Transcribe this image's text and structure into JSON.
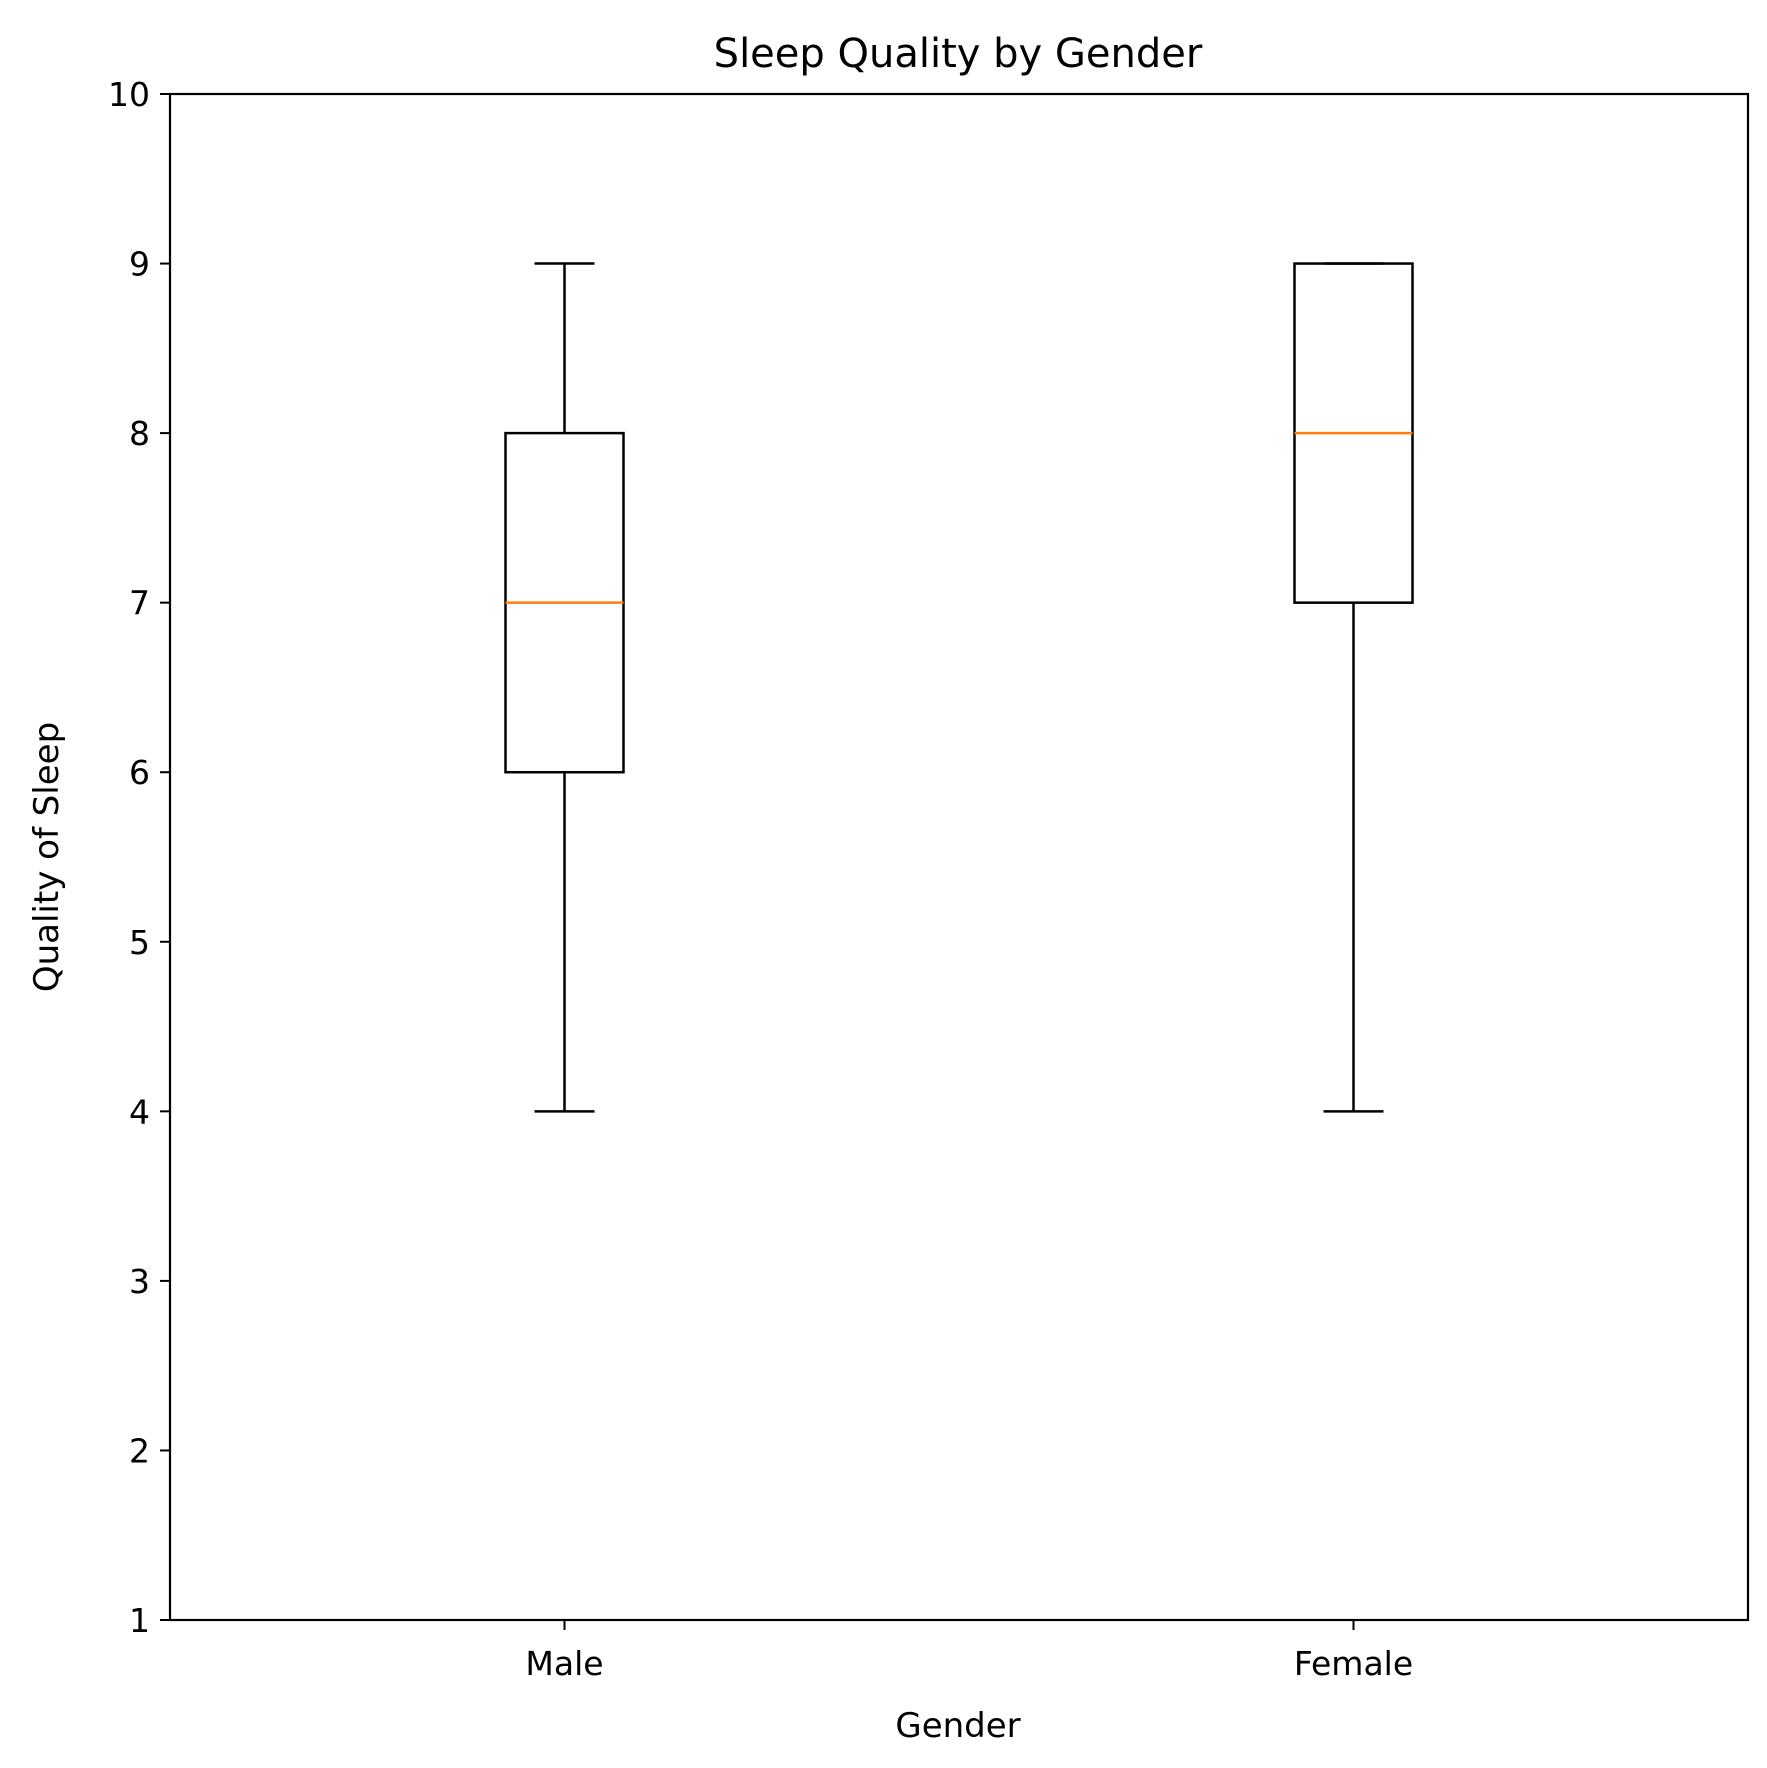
{
  "chart_data": {
    "type": "box",
    "title": "Sleep Quality by Gender",
    "xlabel": "Gender",
    "ylabel": "Quality of Sleep",
    "ylim": [
      1,
      10
    ],
    "yticks": [
      "1",
      "2",
      "3",
      "4",
      "5",
      "6",
      "7",
      "8",
      "9",
      "10"
    ],
    "categories": [
      "Male",
      "Female"
    ],
    "boxes": [
      {
        "category": "Male",
        "whisker_low": 4,
        "q1": 6,
        "median": 7,
        "q3": 8,
        "whisker_high": 9
      },
      {
        "category": "Female",
        "whisker_low": 4,
        "q1": 7,
        "median": 8,
        "q3": 9,
        "whisker_high": 9
      }
    ],
    "grid": false,
    "legend": "none",
    "colors": {
      "box": "#000000",
      "median": "#ff7f0e",
      "axes": "#000000",
      "background": "#ffffff"
    }
  }
}
